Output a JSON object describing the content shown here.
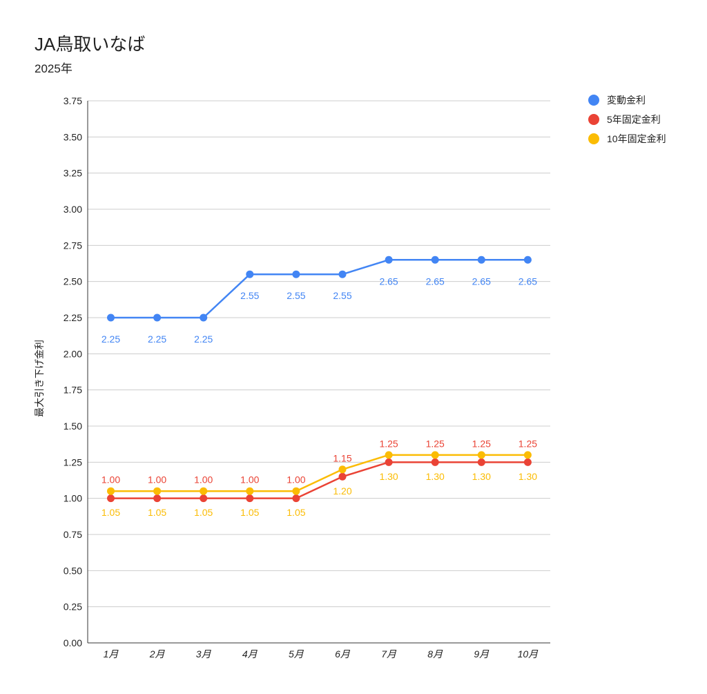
{
  "chart_data": {
    "type": "line",
    "title": "JA鳥取いなば",
    "subtitle": "2025年",
    "xlabel": "",
    "ylabel": "最大引き下げ金利",
    "ylim": [
      0,
      3.75
    ],
    "yticks": [
      "0.00",
      "0.25",
      "0.50",
      "0.75",
      "1.00",
      "1.25",
      "1.50",
      "1.75",
      "2.00",
      "2.25",
      "2.50",
      "2.75",
      "3.00",
      "3.25",
      "3.50",
      "3.75"
    ],
    "categories": [
      "1月",
      "2月",
      "3月",
      "4月",
      "5月",
      "6月",
      "7月",
      "8月",
      "9月",
      "10月"
    ],
    "grid": true,
    "legend_position": "top-right",
    "series": [
      {
        "name": "変動金利",
        "color": "#4285f4",
        "values": [
          2.25,
          2.25,
          2.25,
          2.55,
          2.55,
          2.55,
          2.65,
          2.65,
          2.65,
          2.65
        ],
        "labels": [
          "2.25",
          "2.25",
          "2.25",
          "2.55",
          "2.55",
          "2.55",
          "2.65",
          "2.65",
          "2.65",
          "2.65"
        ],
        "label_pos": [
          "below",
          "below",
          "below",
          "below",
          "below",
          "below",
          "below",
          "below",
          "below",
          "below"
        ]
      },
      {
        "name": "5年固定金利",
        "color": "#ea4335",
        "values": [
          1.0,
          1.0,
          1.0,
          1.0,
          1.0,
          1.15,
          1.25,
          1.25,
          1.25,
          1.25
        ],
        "labels": [
          "1.00",
          "1.00",
          "1.00",
          "1.00",
          "1.00",
          "1.15",
          "1.25",
          "1.25",
          "1.25",
          "1.25"
        ],
        "label_pos": [
          "above",
          "above",
          "above",
          "above",
          "above",
          "above",
          "above",
          "above",
          "above",
          "above"
        ]
      },
      {
        "name": "10年固定金利",
        "color": "#fbbc04",
        "values": [
          1.05,
          1.05,
          1.05,
          1.05,
          1.05,
          1.2,
          1.3,
          1.3,
          1.3,
          1.3
        ],
        "labels": [
          "1.05",
          "1.05",
          "1.05",
          "1.05",
          "1.05",
          "1.20",
          "1.30",
          "1.30",
          "1.30",
          "1.30"
        ],
        "label_pos": [
          "below",
          "below",
          "below",
          "below",
          "below",
          "below",
          "below",
          "below",
          "below",
          "below"
        ]
      }
    ]
  }
}
